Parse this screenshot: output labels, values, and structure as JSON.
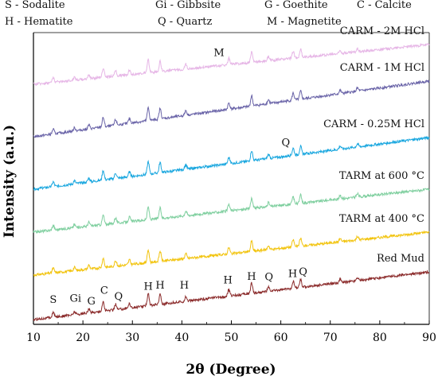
{
  "chart_data": {
    "type": "line",
    "title": "",
    "xlabel": "2θ (Degree)",
    "ylabel": "Intensity (a.u.)",
    "xlim": [
      10,
      90
    ],
    "xticks": [
      10,
      20,
      30,
      40,
      50,
      60,
      70,
      80,
      90
    ],
    "grid": false,
    "legend": {
      "placement": "top",
      "entries": [
        "S - Sodalite",
        "Gi - Gibbsite",
        "G - Goethite",
        "C - Calcite",
        "H - Hematite",
        "Q - Quartz",
        "M - Magnetite"
      ]
    },
    "series": [
      {
        "name": "Red Mud",
        "color": "#8b2b2b",
        "baseline_start": 6,
        "baseline_end": 66
      },
      {
        "name": "TARM at 400 °C",
        "color": "#f2c40f",
        "baseline_start": 62,
        "baseline_end": 116
      },
      {
        "name": "TARM at 600 °C",
        "color": "#7fcf9f",
        "baseline_start": 116,
        "baseline_end": 170
      },
      {
        "name": "CARM - 0.25M HCl",
        "color": "#1aa7df",
        "baseline_start": 170,
        "baseline_end": 235
      },
      {
        "name": "CARM - 1M HCl",
        "color": "#6a64a8",
        "baseline_start": 236,
        "baseline_end": 306
      },
      {
        "name": "CARM - 2M HCl",
        "color": "#e6b6e6",
        "baseline_start": 302,
        "baseline_end": 352
      }
    ],
    "peaks": [
      {
        "x": 14.0,
        "h": 6
      },
      {
        "x": 18.3,
        "h": 4
      },
      {
        "x": 21.2,
        "h": 5
      },
      {
        "x": 24.1,
        "h": 12
      },
      {
        "x": 26.6,
        "h": 7
      },
      {
        "x": 29.4,
        "h": 6
      },
      {
        "x": 33.2,
        "h": 16
      },
      {
        "x": 35.6,
        "h": 13
      },
      {
        "x": 40.8,
        "h": 6
      },
      {
        "x": 49.5,
        "h": 8
      },
      {
        "x": 54.1,
        "h": 13
      },
      {
        "x": 57.5,
        "h": 5
      },
      {
        "x": 62.5,
        "h": 9
      },
      {
        "x": 64.0,
        "h": 10
      },
      {
        "x": 72.0,
        "h": 4
      },
      {
        "x": 75.5,
        "h": 4
      }
    ],
    "annotations": [
      {
        "text": "S",
        "x": 14.0,
        "series": 0,
        "offset": 18
      },
      {
        "text": "Gi",
        "x": 18.5,
        "series": 0,
        "offset": 16
      },
      {
        "text": "G",
        "x": 21.7,
        "series": 0,
        "offset": 10
      },
      {
        "text": "C",
        "x": 24.3,
        "series": 0,
        "offset": 22
      },
      {
        "text": "Q",
        "x": 27.2,
        "series": 0,
        "offset": 12
      },
      {
        "text": "H",
        "x": 33.2,
        "series": 0,
        "offset": 20
      },
      {
        "text": "H",
        "x": 35.6,
        "series": 0,
        "offset": 20
      },
      {
        "text": "H",
        "x": 40.5,
        "series": 0,
        "offset": 16
      },
      {
        "text": "H",
        "x": 49.3,
        "series": 0,
        "offset": 16
      },
      {
        "text": "H",
        "x": 54.1,
        "series": 0,
        "offset": 17
      },
      {
        "text": "Q",
        "x": 57.6,
        "series": 0,
        "offset": 14
      },
      {
        "text": "H",
        "x": 62.4,
        "series": 0,
        "offset": 14
      },
      {
        "text": "Q",
        "x": 64.5,
        "series": 0,
        "offset": 15
      },
      {
        "text": "Q",
        "x": 61.0,
        "series": 3,
        "offset": 13
      },
      {
        "text": "M",
        "x": 47.5,
        "series": 5,
        "offset": 12
      }
    ]
  }
}
